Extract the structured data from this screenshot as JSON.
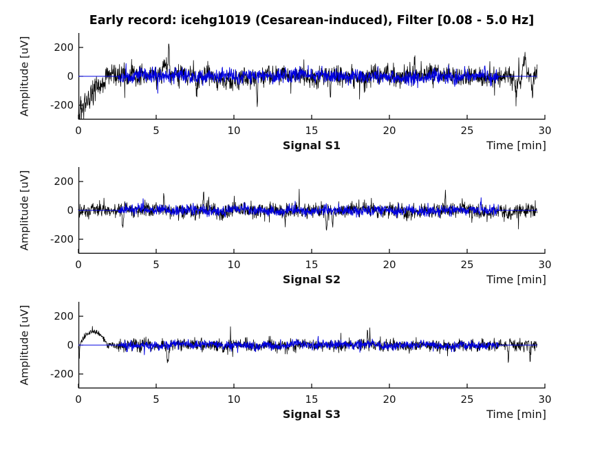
{
  "figure": {
    "title": "Early record: icehg1019 (Cesarean-induced), Filter [0.08 - 5.0 Hz]",
    "background": "#ffffff"
  },
  "colors": {
    "raw_signal": "#000000",
    "filtered_signal": "#0000e0",
    "axis": "#000000",
    "text": "#111111"
  },
  "chart_data": [
    {
      "type": "line",
      "xlabel": "Signal S1",
      "xlabel_right": "Time [min]",
      "ylabel": "Amplitude [uV]",
      "xlim": [
        0,
        30
      ],
      "ylim": [
        -300,
        300
      ],
      "xticks": [
        0,
        5,
        10,
        15,
        20,
        25,
        30
      ],
      "yticks": [
        200,
        0,
        -200
      ],
      "grid": false,
      "legend": "none",
      "series": [
        {
          "name": "raw-signal",
          "note": "black raw trace, 0-29.5 min; starts near -240 uV, clipped at -300, ramps to 0 by ~2 min; noisy +/-120 with spikes to +220 near 5.8 min and -190 near 11.5 min",
          "color": "#000000",
          "t_start": 0,
          "t_end": 29.5,
          "noise_std": 40,
          "seed": 7,
          "ramp": {
            "t0": 0,
            "t1": 2.05,
            "from": -235,
            "osc_amp": 50,
            "osc_freq": 50
          },
          "events": [
            {
              "t": 5.55,
              "amp": 110,
              "w": 0.15
            },
            {
              "t": 5.82,
              "amp": 215,
              "w": 0.05
            },
            {
              "t": 7.6,
              "amp": -140,
              "w": 0.05
            },
            {
              "t": 11.5,
              "amp": -185,
              "w": 0.04
            },
            {
              "t": 16.2,
              "amp": -140,
              "w": 0.04
            },
            {
              "t": 21.6,
              "amp": 120,
              "w": 0.05
            },
            {
              "t": 28.15,
              "amp": -150,
              "w": 0.08
            },
            {
              "t": 28.7,
              "amp": 135,
              "w": 0.12
            },
            {
              "t": 29.2,
              "amp": -120,
              "w": 0.06
            }
          ]
        },
        {
          "name": "filtered-signal",
          "note": "blue processed trace: zero line over full record, noisy band about +/-60 uV between 2.6 and 27 min",
          "color": "#0000e0",
          "t_start": 0,
          "t_end": 29.5,
          "active": [
            2.6,
            27.0
          ],
          "noise_std": 27,
          "seed": 12
        }
      ]
    },
    {
      "type": "line",
      "xlabel": "Signal S2",
      "xlabel_right": "Time [min]",
      "ylabel": "Amplitude [uV]",
      "xlim": [
        0,
        30
      ],
      "ylim": [
        -300,
        300
      ],
      "xticks": [
        0,
        5,
        10,
        15,
        20,
        25,
        30
      ],
      "yticks": [
        200,
        0,
        -200
      ],
      "grid": false,
      "legend": "none",
      "series": [
        {
          "name": "raw-signal",
          "note": "black raw trace 0-29.5 min, noisy +/-90 uV; dip to about -160 near 16 min, spike to about +145 near 23.6 min",
          "color": "#000000",
          "t_start": 0,
          "t_end": 29.5,
          "noise_std": 30,
          "seed": 23,
          "events": [
            {
              "t": 2.85,
              "amp": -115,
              "w": 0.05
            },
            {
              "t": 5.5,
              "amp": 95,
              "w": 0.05
            },
            {
              "t": 8.05,
              "amp": 120,
              "w": 0.04
            },
            {
              "t": 13.3,
              "amp": -105,
              "w": 0.04
            },
            {
              "t": 15.95,
              "amp": -155,
              "w": 0.06
            },
            {
              "t": 16.35,
              "amp": -100,
              "w": 0.04
            },
            {
              "t": 23.6,
              "amp": 140,
              "w": 0.035
            }
          ]
        },
        {
          "name": "filtered-signal",
          "note": "blue processed trace: zero line over full record, noisy band about +/-45 uV between 2.6 and 27 min",
          "color": "#0000e0",
          "t_start": 0,
          "t_end": 29.5,
          "active": [
            2.6,
            27.0
          ],
          "noise_std": 20,
          "seed": 31
        }
      ]
    },
    {
      "type": "line",
      "xlabel": "Signal S3",
      "xlabel_right": "Time [min]",
      "ylabel": "Amplitude [uV]",
      "xlim": [
        0,
        30
      ],
      "ylim": [
        -300,
        300
      ],
      "xticks": [
        0,
        5,
        10,
        15,
        20,
        25,
        30
      ],
      "yticks": [
        200,
        0,
        -200
      ],
      "grid": false,
      "legend": "none",
      "series": [
        {
          "name": "raw-signal",
          "note": "black raw trace 0-29.5 min; initial dip to -95 then positive hump ~+90 uV during 0.1-1.8 min, calm until 2.5 min, then noisy +/-70; dip -120 near 5.8 min, thin spike +130 near 9.8 min",
          "color": "#000000",
          "t_start": 0,
          "t_end": 29.5,
          "noise_std": 24,
          "seed": 47,
          "quiet_before": {
            "t": 2.45,
            "factor": 0.45
          },
          "hump": {
            "t0": 0.1,
            "t1": 1.85,
            "amp": 92
          },
          "events": [
            {
              "t": 0.05,
              "amp": -95,
              "w": 0.035
            },
            {
              "t": 5.75,
              "amp": -118,
              "w": 0.07
            },
            {
              "t": 9.78,
              "amp": 132,
              "w": 0.013
            },
            {
              "t": 9.92,
              "amp": -68,
              "w": 0.025
            },
            {
              "t": 18.6,
              "amp": 85,
              "w": 0.04
            },
            {
              "t": 27.65,
              "amp": -108,
              "w": 0.05
            },
            {
              "t": 29.05,
              "amp": -85,
              "w": 0.05
            }
          ]
        },
        {
          "name": "filtered-signal",
          "note": "blue processed trace: zero line over full record, noisy band about +/-40 uV between 2.6 and 27 min",
          "color": "#0000e0",
          "t_start": 0,
          "t_end": 29.5,
          "active": [
            2.6,
            27.0
          ],
          "noise_std": 17,
          "seed": 53
        }
      ]
    }
  ]
}
